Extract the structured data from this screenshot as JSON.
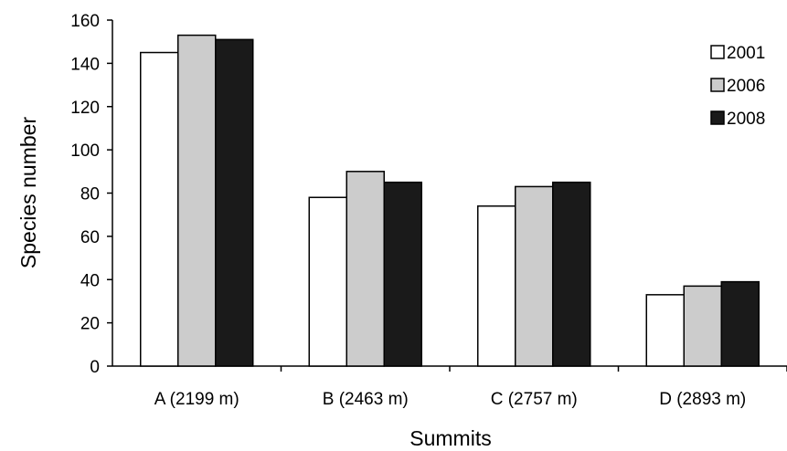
{
  "chart_data": {
    "type": "bar",
    "title": "",
    "xlabel": "Summits",
    "ylabel": "Species number",
    "ylim": [
      0,
      160
    ],
    "yticks": [
      0,
      20,
      40,
      60,
      80,
      100,
      120,
      140,
      160
    ],
    "grid": false,
    "legend_position": "top-right",
    "categories": [
      "A (2199 m)",
      "B (2463 m)",
      "C (2757 m)",
      "D (2893 m)"
    ],
    "series": [
      {
        "name": "2001",
        "color": "#ffffff",
        "values": [
          145,
          78,
          74,
          33
        ]
      },
      {
        "name": "2006",
        "color": "#cccccc",
        "values": [
          153,
          90,
          83,
          37
        ]
      },
      {
        "name": "2008",
        "color": "#1a1a1a",
        "values": [
          151,
          85,
          85,
          39
        ]
      }
    ]
  }
}
